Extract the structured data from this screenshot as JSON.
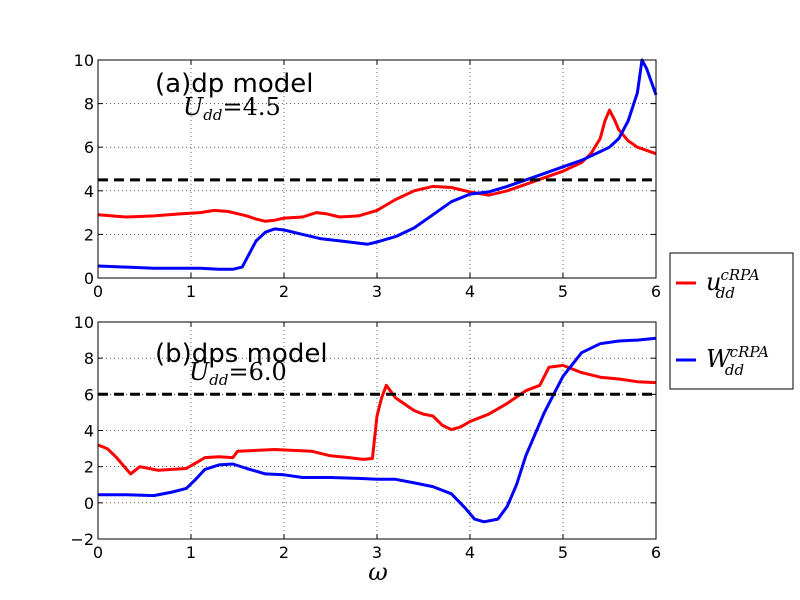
{
  "chart_data": [
    {
      "type": "line",
      "title": "(a)dp model",
      "annotation": {
        "sym": "U",
        "sub": "dd",
        "eq": "=4.5"
      },
      "xlim": [
        0,
        6
      ],
      "ylim": [
        0,
        10
      ],
      "xticks": [
        "0",
        "1",
        "2",
        "3",
        "4",
        "5",
        "6"
      ],
      "yticks": [
        "0",
        "2",
        "4",
        "6",
        "8",
        "10"
      ],
      "grid": true,
      "series": [
        {
          "label": "u_dd^cRPA",
          "color": "#ff0000",
          "x": [
            0,
            0.3,
            0.6,
            0.9,
            1.1,
            1.25,
            1.4,
            1.5,
            1.6,
            1.7,
            1.8,
            1.9,
            2.0,
            2.2,
            2.35,
            2.45,
            2.6,
            2.8,
            3.0,
            3.2,
            3.4,
            3.6,
            3.8,
            4.0,
            4.2,
            4.4,
            4.6,
            4.8,
            5.0,
            5.2,
            5.3,
            5.4,
            5.45,
            5.5,
            5.55,
            5.6,
            5.7,
            5.8,
            6.0
          ],
          "y": [
            2.9,
            2.8,
            2.85,
            2.95,
            3.0,
            3.1,
            3.05,
            2.95,
            2.85,
            2.7,
            2.6,
            2.65,
            2.75,
            2.8,
            3.0,
            2.95,
            2.8,
            2.85,
            3.1,
            3.6,
            4.0,
            4.2,
            4.15,
            3.95,
            3.8,
            4.0,
            4.3,
            4.6,
            4.9,
            5.3,
            5.7,
            6.4,
            7.2,
            7.7,
            7.3,
            6.8,
            6.3,
            6.0,
            5.7
          ]
        },
        {
          "label": "W_dd^cRPA",
          "color": "#0000ff",
          "x": [
            0,
            0.3,
            0.6,
            0.9,
            1.1,
            1.3,
            1.45,
            1.55,
            1.6,
            1.65,
            1.7,
            1.8,
            1.9,
            2.0,
            2.2,
            2.4,
            2.6,
            2.8,
            2.9,
            3.0,
            3.2,
            3.4,
            3.6,
            3.8,
            4.0,
            4.2,
            4.4,
            4.6,
            4.8,
            5.0,
            5.2,
            5.4,
            5.5,
            5.6,
            5.7,
            5.8,
            5.85,
            5.9,
            6.0
          ],
          "y": [
            0.55,
            0.5,
            0.45,
            0.45,
            0.45,
            0.4,
            0.4,
            0.5,
            0.9,
            1.3,
            1.7,
            2.1,
            2.25,
            2.2,
            2.0,
            1.8,
            1.7,
            1.6,
            1.55,
            1.65,
            1.9,
            2.3,
            2.9,
            3.5,
            3.85,
            3.95,
            4.2,
            4.5,
            4.8,
            5.1,
            5.4,
            5.8,
            6.0,
            6.4,
            7.2,
            8.5,
            10.0,
            9.6,
            8.4
          ]
        },
        {
          "label": "",
          "color": "#000000",
          "dashed": true,
          "x": [
            0,
            6
          ],
          "y": [
            4.5,
            4.5
          ]
        }
      ]
    },
    {
      "type": "line",
      "title": "(b)dps model",
      "annotation": {
        "sym": "U",
        "sub": "dd",
        "eq": "=6.0"
      },
      "xlim": [
        0,
        6
      ],
      "ylim": [
        -2,
        10
      ],
      "xticks": [
        "0",
        "1",
        "2",
        "3",
        "4",
        "5",
        "6"
      ],
      "yticks": [
        "−2",
        "0",
        "2",
        "4",
        "6",
        "8",
        "10"
      ],
      "yticks_values": [
        -2,
        0,
        2,
        4,
        6,
        8,
        10
      ],
      "xlabel": "ω",
      "grid": true,
      "series": [
        {
          "label": "u_dd^cRPA",
          "color": "#ff0000",
          "x": [
            0,
            0.1,
            0.2,
            0.3,
            0.35,
            0.45,
            0.55,
            0.65,
            0.8,
            0.95,
            1.05,
            1.15,
            1.3,
            1.45,
            1.5,
            1.7,
            1.9,
            2.1,
            2.3,
            2.5,
            2.7,
            2.85,
            2.95,
            3.0,
            3.05,
            3.1,
            3.2,
            3.4,
            3.5,
            3.6,
            3.7,
            3.8,
            3.9,
            4.0,
            4.2,
            4.4,
            4.6,
            4.75,
            4.85,
            5.0,
            5.2,
            5.4,
            5.6,
            5.8,
            6.0
          ],
          "y": [
            3.2,
            3.0,
            2.5,
            1.9,
            1.6,
            2.0,
            1.9,
            1.8,
            1.85,
            1.9,
            2.2,
            2.5,
            2.55,
            2.5,
            2.85,
            2.9,
            2.95,
            2.9,
            2.85,
            2.6,
            2.5,
            2.4,
            2.45,
            4.8,
            5.8,
            6.5,
            5.8,
            5.1,
            4.9,
            4.8,
            4.3,
            4.05,
            4.2,
            4.5,
            4.9,
            5.5,
            6.2,
            6.5,
            7.5,
            7.6,
            7.2,
            6.95,
            6.85,
            6.7,
            6.65
          ]
        },
        {
          "label": "W_dd^cRPA",
          "color": "#0000ff",
          "x": [
            0,
            0.3,
            0.6,
            0.8,
            0.95,
            1.05,
            1.15,
            1.3,
            1.45,
            1.6,
            1.8,
            2.0,
            2.2,
            2.5,
            2.8,
            3.0,
            3.2,
            3.4,
            3.6,
            3.8,
            3.95,
            4.05,
            4.15,
            4.3,
            4.4,
            4.5,
            4.6,
            4.8,
            5.0,
            5.2,
            5.4,
            5.6,
            5.8,
            6.0
          ],
          "y": [
            0.45,
            0.45,
            0.4,
            0.6,
            0.8,
            1.3,
            1.85,
            2.1,
            2.15,
            1.9,
            1.6,
            1.55,
            1.4,
            1.4,
            1.35,
            1.3,
            1.3,
            1.1,
            0.9,
            0.5,
            -0.3,
            -0.9,
            -1.05,
            -0.9,
            -0.2,
            1.0,
            2.6,
            5.0,
            7.0,
            8.3,
            8.8,
            8.95,
            9.0,
            9.1
          ]
        },
        {
          "label": "",
          "color": "#000000",
          "dashed": true,
          "x": [
            0,
            6
          ],
          "y": [
            6.0,
            6.0
          ]
        }
      ]
    }
  ],
  "legend": {
    "placement": "right",
    "entries": [
      {
        "sym": "u",
        "sub": "dd",
        "sup": "cRPA",
        "color": "#ff0000"
      },
      {
        "sym": "W",
        "sub": "dd",
        "sup": "cRPA",
        "color": "#0000ff"
      }
    ]
  }
}
